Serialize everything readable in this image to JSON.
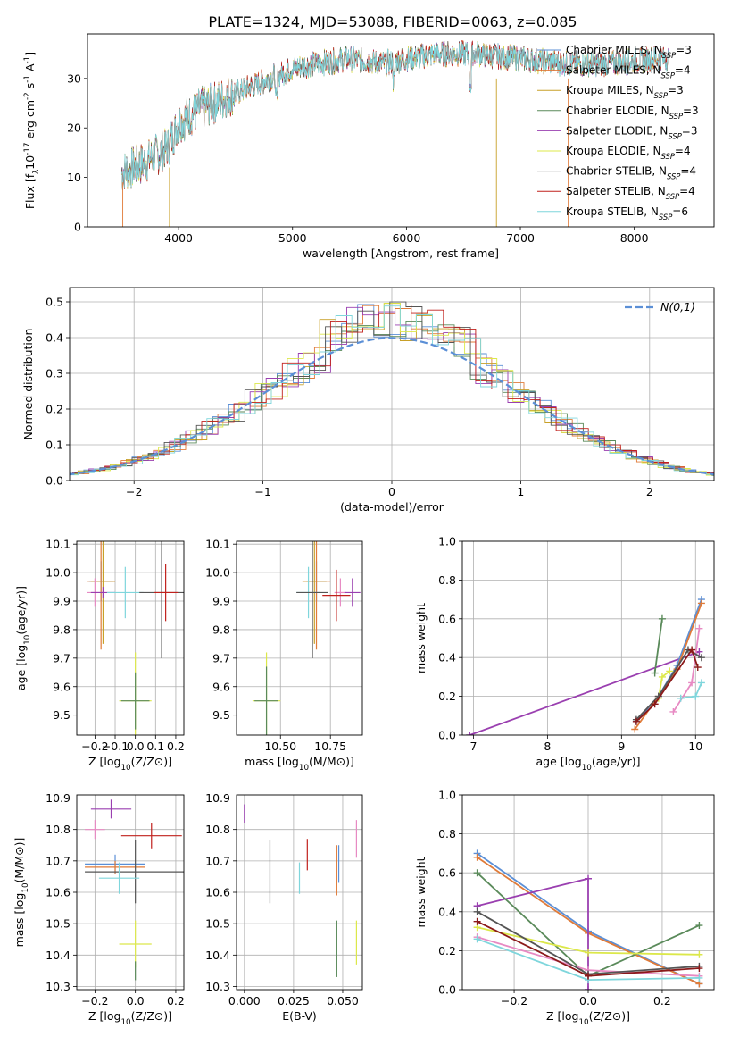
{
  "figure_title": "PLATE=1324, MJD=53088, FIBERID=0063, z=0.085",
  "chart_data": [
    {
      "id": "spectrum",
      "type": "line",
      "xlabel": "wavelength [Angstrom, rest frame]",
      "ylabel": "Flux [f_λ10^-17 erg cm^-2 s^-1 A^-1]",
      "xlim": [
        3200,
        8700
      ],
      "ylim": [
        0,
        39
      ],
      "xticks": [
        4000,
        5000,
        6000,
        7000,
        8000
      ],
      "yticks": [
        0,
        10,
        20,
        30
      ],
      "grid": false,
      "legend_position": "top-right",
      "continuum": [
        [
          3500,
          11
        ],
        [
          3700,
          13
        ],
        [
          3900,
          16
        ],
        [
          4000,
          21
        ],
        [
          4200,
          24
        ],
        [
          4500,
          27
        ],
        [
          4800,
          30
        ],
        [
          5000,
          32
        ],
        [
          5200,
          33
        ],
        [
          5500,
          34
        ],
        [
          5800,
          33
        ],
        [
          6000,
          34
        ],
        [
          6300,
          35
        ],
        [
          6600,
          35
        ],
        [
          7000,
          34
        ],
        [
          7400,
          33
        ],
        [
          7800,
          33
        ],
        [
          8200,
          34
        ],
        [
          8300,
          34
        ]
      ],
      "series": [
        {
          "name": "Chabrier MILES, N_SSP=3",
          "color": "#5b8fd6"
        },
        {
          "name": "Salpeter MILES, N_SSP=4",
          "color": "#e07b39"
        },
        {
          "name": "Kroupa MILES, N_SSP=3",
          "color": "#c8a028"
        },
        {
          "name": "Chabrier ELODIE, N_SSP=3",
          "color": "#5a8a5a"
        },
        {
          "name": "Salpeter ELODIE, N_SSP=3",
          "color": "#9a3fb0"
        },
        {
          "name": "Kroupa ELODIE, N_SSP=4",
          "color": "#dce84a"
        },
        {
          "name": "Chabrier STELIB, N_SSP=4",
          "color": "#555555"
        },
        {
          "name": "Salpeter STELIB, N_SSP=4",
          "color": "#c0201c"
        },
        {
          "name": "Kroupa STELIB, N_SSP=6",
          "color": "#7fd6dc"
        }
      ]
    },
    {
      "id": "residuals",
      "type": "step",
      "xlabel": "(data-model)/error",
      "ylabel": "Normed distribution",
      "xlim": [
        -2.5,
        2.5
      ],
      "ylim": [
        0,
        0.54
      ],
      "xticks": [
        -2,
        -1,
        0,
        1,
        2
      ],
      "yticks": [
        0.0,
        0.1,
        0.2,
        0.3,
        0.4,
        0.5
      ],
      "grid": true,
      "legend_position": "top-right",
      "gaussian_label": "N(0,1)",
      "gaussian_color": "#5b8fd6"
    },
    {
      "id": "age_Z",
      "type": "errorbar",
      "xlabel": "Z [log10(Z/Z⊙)]",
      "ylabel": "age  [log10(age/yr)]",
      "xlim": [
        -0.29,
        0.24
      ],
      "ylim": [
        9.43,
        10.11
      ],
      "xticks": [
        -0.2,
        -0.1,
        0.0,
        0.1,
        0.2
      ],
      "yticks": [
        9.5,
        9.6,
        9.7,
        9.8,
        9.9,
        10.0,
        10.1
      ],
      "grid": true,
      "points": [
        {
          "color": "#5b8fd6",
          "x": -0.17,
          "xerr": 0.06,
          "y": 9.97,
          "yerr": 0.07
        },
        {
          "color": "#e07b39",
          "x": -0.17,
          "xerr": 0.07,
          "y": 9.97,
          "yerr": 0.24
        },
        {
          "color": "#c8a028",
          "x": -0.16,
          "xerr": 0.06,
          "y": 9.97,
          "yerr": 0.22
        },
        {
          "color": "#e78ac3",
          "x": -0.2,
          "xerr": 0.04,
          "y": 9.93,
          "yerr": 0.05
        },
        {
          "color": "#9a3fb0",
          "x": -0.16,
          "xerr": 0.06,
          "y": 9.93,
          "yerr": 0.02
        },
        {
          "color": "#7fd6dc",
          "x": -0.05,
          "xerr": 0.09,
          "y": 9.93,
          "yerr": 0.09
        },
        {
          "color": "#555555",
          "x": 0.13,
          "xerr": 0.11,
          "y": 9.93,
          "yerr": 0.23
        },
        {
          "color": "#c0201c",
          "x": 0.15,
          "xerr": 0.06,
          "y": 9.93,
          "yerr": 0.1
        },
        {
          "color": "#dce84a",
          "x": 0.0,
          "xerr": 0.08,
          "y": 9.55,
          "yerr": 0.17
        },
        {
          "color": "#5a8a5a",
          "x": 0.0,
          "xerr": 0.07,
          "y": 9.55,
          "yerr": 0.1
        }
      ]
    },
    {
      "id": "age_mass",
      "type": "errorbar",
      "xlabel": "mass [log10(M/M⊙)]",
      "xlim": [
        10.28,
        10.91
      ],
      "ylim": [
        9.43,
        10.11
      ],
      "xticks": [
        10.5,
        10.75
      ],
      "yticks": [
        9.5,
        9.6,
        9.7,
        9.8,
        9.9,
        10.0,
        10.1
      ],
      "grid": true,
      "points": [
        {
          "color": "#5b8fd6",
          "x": 10.68,
          "xerr": 0.05,
          "y": 9.97,
          "yerr": 0.07
        },
        {
          "color": "#e07b39",
          "x": 10.68,
          "xerr": 0.07,
          "y": 9.97,
          "yerr": 0.24
        },
        {
          "color": "#c8a028",
          "x": 10.67,
          "xerr": 0.06,
          "y": 9.97,
          "yerr": 0.22
        },
        {
          "color": "#e78ac3",
          "x": 10.8,
          "xerr": 0.03,
          "y": 9.93,
          "yerr": 0.05
        },
        {
          "color": "#9a3fb0",
          "x": 10.86,
          "xerr": 0.04,
          "y": 9.93,
          "yerr": 0.05
        },
        {
          "color": "#7fd6dc",
          "x": 10.64,
          "xerr": 0.06,
          "y": 9.93,
          "yerr": 0.09
        },
        {
          "color": "#555555",
          "x": 10.66,
          "xerr": 0.08,
          "y": 9.93,
          "yerr": 0.23
        },
        {
          "color": "#c0201c",
          "x": 10.78,
          "xerr": 0.07,
          "y": 9.92,
          "yerr": 0.09
        },
        {
          "color": "#dce84a",
          "x": 10.43,
          "xerr": 0.07,
          "y": 9.55,
          "yerr": 0.17
        },
        {
          "color": "#5a8a5a",
          "x": 10.43,
          "xerr": 0.06,
          "y": 9.55,
          "yerr": 0.12
        }
      ]
    },
    {
      "id": "weight_age",
      "type": "line",
      "xlabel": "age  [log10(age/yr)]",
      "ylabel": "mass weight",
      "xlim": [
        6.85,
        10.25
      ],
      "ylim": [
        0,
        1
      ],
      "xticks": [
        7,
        8,
        9,
        10
      ],
      "yticks": [
        0.0,
        0.2,
        0.4,
        0.6,
        0.8,
        1.0
      ],
      "grid": true,
      "series": [
        {
          "color": "#9a3fb0",
          "x": [
            6.95,
            10.05
          ],
          "y": [
            0.0,
            0.43
          ]
        },
        {
          "color": "#5b8fd6",
          "x": [
            9.2,
            9.5,
            9.75,
            10.08
          ],
          "y": [
            0.07,
            0.2,
            0.36,
            0.7
          ]
        },
        {
          "color": "#e07b39",
          "x": [
            9.18,
            9.5,
            9.75,
            10.08
          ],
          "y": [
            0.03,
            0.2,
            0.34,
            0.68
          ]
        },
        {
          "color": "#5a8a5a",
          "x": [
            9.45,
            9.55
          ],
          "y": [
            0.32,
            0.6
          ]
        },
        {
          "color": "#dce84a",
          "x": [
            9.5,
            9.55,
            9.65
          ],
          "y": [
            0.19,
            0.3,
            0.33
          ]
        },
        {
          "color": "#e78ac3",
          "x": [
            9.7,
            9.95,
            10.05
          ],
          "y": [
            0.12,
            0.27,
            0.55
          ]
        },
        {
          "color": "#7fd6dc",
          "x": [
            9.8,
            10.0,
            10.08
          ],
          "y": [
            0.19,
            0.2,
            0.27
          ]
        },
        {
          "color": "#555555",
          "x": [
            9.2,
            9.5,
            9.9,
            10.08
          ],
          "y": [
            0.08,
            0.2,
            0.44,
            0.4
          ]
        },
        {
          "color": "#8b1a1a",
          "x": [
            9.2,
            9.45,
            9.95,
            10.03
          ],
          "y": [
            0.07,
            0.16,
            0.44,
            0.35
          ]
        }
      ]
    },
    {
      "id": "mass_Z",
      "type": "errorbar",
      "xlabel": "Z [log10(Z/Z⊙)]",
      "ylabel": "mass [log10(M/M⊙)]",
      "xlim": [
        -0.29,
        0.24
      ],
      "ylim": [
        10.29,
        10.91
      ],
      "xticks": [
        -0.2,
        0.0,
        0.2
      ],
      "yticks": [
        10.3,
        10.4,
        10.5,
        10.6,
        10.7,
        10.8,
        10.9
      ],
      "grid": true,
      "points": [
        {
          "color": "#9a3fb0",
          "x": -0.12,
          "xerr": 0.1,
          "y": 10.865,
          "yerr": 0.03
        },
        {
          "color": "#e78ac3",
          "x": -0.2,
          "xerr": 0.05,
          "y": 10.8,
          "yerr": 0.03
        },
        {
          "color": "#c0201c",
          "x": 0.08,
          "xerr": 0.15,
          "y": 10.78,
          "yerr": 0.04
        },
        {
          "color": "#5b8fd6",
          "x": -0.1,
          "xerr": 0.15,
          "y": 10.69,
          "yerr": 0.03
        },
        {
          "color": "#e07b39",
          "x": -0.1,
          "xerr": 0.15,
          "y": 10.68,
          "yerr": 0.02
        },
        {
          "color": "#555555",
          "x": 0.0,
          "xerr": 0.25,
          "y": 10.665,
          "yerr": 0.1
        },
        {
          "color": "#7fd6dc",
          "x": -0.08,
          "xerr": 0.1,
          "y": 10.645,
          "yerr": 0.05
        },
        {
          "color": "#dce84a",
          "x": 0.0,
          "xerr": 0.08,
          "y": 10.435,
          "yerr": 0.075
        },
        {
          "color": "#5a8a5a",
          "x": 0.0,
          "xerr": 0.0,
          "y": 10.35,
          "yerr": 0.03
        }
      ]
    },
    {
      "id": "mass_ebv",
      "type": "errorbar",
      "xlabel": "E(B-V)",
      "xlim": [
        -0.004,
        0.06
      ],
      "ylim": [
        10.29,
        10.91
      ],
      "xticks": [
        0.0,
        0.025,
        0.05
      ],
      "tick_labels_x": [
        "0.000",
        "0.025",
        "0.050"
      ],
      "yticks": [
        10.3,
        10.4,
        10.5,
        10.6,
        10.7,
        10.8,
        10.9
      ],
      "grid": true,
      "points": [
        {
          "color": "#9a3fb0",
          "x": 0.0,
          "y": 10.85,
          "yerr": 0.03
        },
        {
          "color": "#555555",
          "x": 0.013,
          "y": 10.665,
          "yerr": 0.1
        },
        {
          "color": "#7fd6dc",
          "x": 0.028,
          "y": 10.645,
          "yerr": 0.05
        },
        {
          "color": "#c0201c",
          "x": 0.032,
          "y": 10.72,
          "yerr": 0.05
        },
        {
          "color": "#e07b39",
          "x": 0.047,
          "y": 10.67,
          "yerr": 0.08
        },
        {
          "color": "#5b8fd6",
          "x": 0.048,
          "y": 10.69,
          "yerr": 0.06
        },
        {
          "color": "#5a8a5a",
          "x": 0.047,
          "y": 10.42,
          "yerr": 0.09
        },
        {
          "color": "#e78ac3",
          "x": 0.057,
          "y": 10.77,
          "yerr": 0.06
        },
        {
          "color": "#dce84a",
          "x": 0.057,
          "y": 10.44,
          "yerr": 0.07
        }
      ]
    },
    {
      "id": "weight_Z",
      "type": "line",
      "xlabel": "Z [log10(Z/Z⊙)]",
      "ylabel": "mass weight",
      "xlim": [
        -0.34,
        0.34
      ],
      "ylim": [
        0,
        1
      ],
      "xticks": [
        -0.2,
        0.0,
        0.2
      ],
      "yticks": [
        0.0,
        0.2,
        0.4,
        0.6,
        0.8,
        1.0
      ],
      "grid": true,
      "series": [
        {
          "color": "#5b8fd6",
          "x": [
            -0.3,
            0.0,
            0.3
          ],
          "y": [
            0.7,
            0.3,
            0.03
          ]
        },
        {
          "color": "#e07b39",
          "x": [
            -0.3,
            0.0,
            0.3
          ],
          "y": [
            0.68,
            0.29,
            0.03
          ]
        },
        {
          "color": "#9a3fb0",
          "x": [
            -0.3,
            0.0,
            0.0
          ],
          "y": [
            0.43,
            0.57,
            0.0
          ]
        },
        {
          "color": "#5a8a5a",
          "x": [
            -0.3,
            0.0,
            0.3
          ],
          "y": [
            0.6,
            0.07,
            0.33
          ]
        },
        {
          "color": "#dce84a",
          "x": [
            -0.3,
            0.0,
            0.3
          ],
          "y": [
            0.32,
            0.19,
            0.18
          ]
        },
        {
          "color": "#e78ac3",
          "x": [
            -0.3,
            0.0,
            0.3
          ],
          "y": [
            0.27,
            0.1,
            0.07
          ]
        },
        {
          "color": "#7fd6dc",
          "x": [
            -0.3,
            0.0,
            0.3
          ],
          "y": [
            0.26,
            0.05,
            0.06
          ]
        },
        {
          "color": "#555555",
          "x": [
            -0.3,
            0.0,
            0.3
          ],
          "y": [
            0.4,
            0.08,
            0.12
          ]
        },
        {
          "color": "#8b1a1a",
          "x": [
            -0.3,
            0.0,
            0.3
          ],
          "y": [
            0.35,
            0.07,
            0.11
          ]
        }
      ]
    }
  ]
}
